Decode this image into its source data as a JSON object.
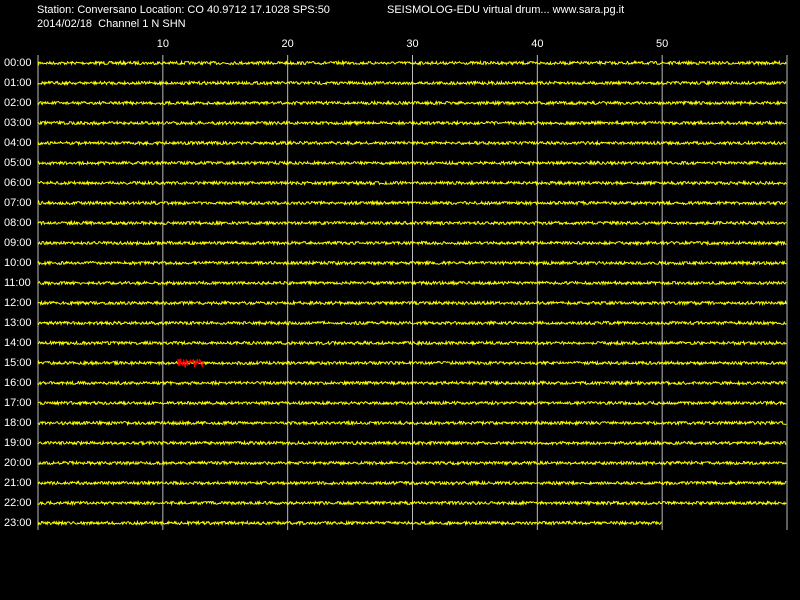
{
  "chart_data": {
    "type": "drum",
    "header": {
      "station": "Station: Conversano Location: CO 40.9712 17.1028 SPS:50",
      "title": "SEISMOLOG-EDU virtual drum... www.sara.pg.it",
      "channel": "2014/02/18  Channel 1 N SHN"
    },
    "xlim": [
      0,
      60
    ],
    "xticks": [
      10,
      20,
      30,
      40,
      50
    ],
    "grid": true,
    "categories": [
      "00:00",
      "01:00",
      "02:00",
      "03:00",
      "04:00",
      "05:00",
      "06:00",
      "07:00",
      "08:00",
      "09:00",
      "10:00",
      "11:00",
      "12:00",
      "13:00",
      "14:00",
      "15:00",
      "16:00",
      "17:00",
      "18:00",
      "19:00",
      "20:00",
      "21:00",
      "22:00",
      "23:00"
    ],
    "values": [
      60,
      60,
      60,
      60,
      60,
      60,
      60,
      60,
      60,
      60,
      60,
      60,
      60,
      60,
      60,
      60,
      60,
      60,
      60,
      60,
      60,
      60,
      60,
      50
    ],
    "color": "#ffff00",
    "event": {
      "row": "15:00",
      "xlim": [
        11.2,
        13.3
      ],
      "color": "#ff0000"
    }
  }
}
